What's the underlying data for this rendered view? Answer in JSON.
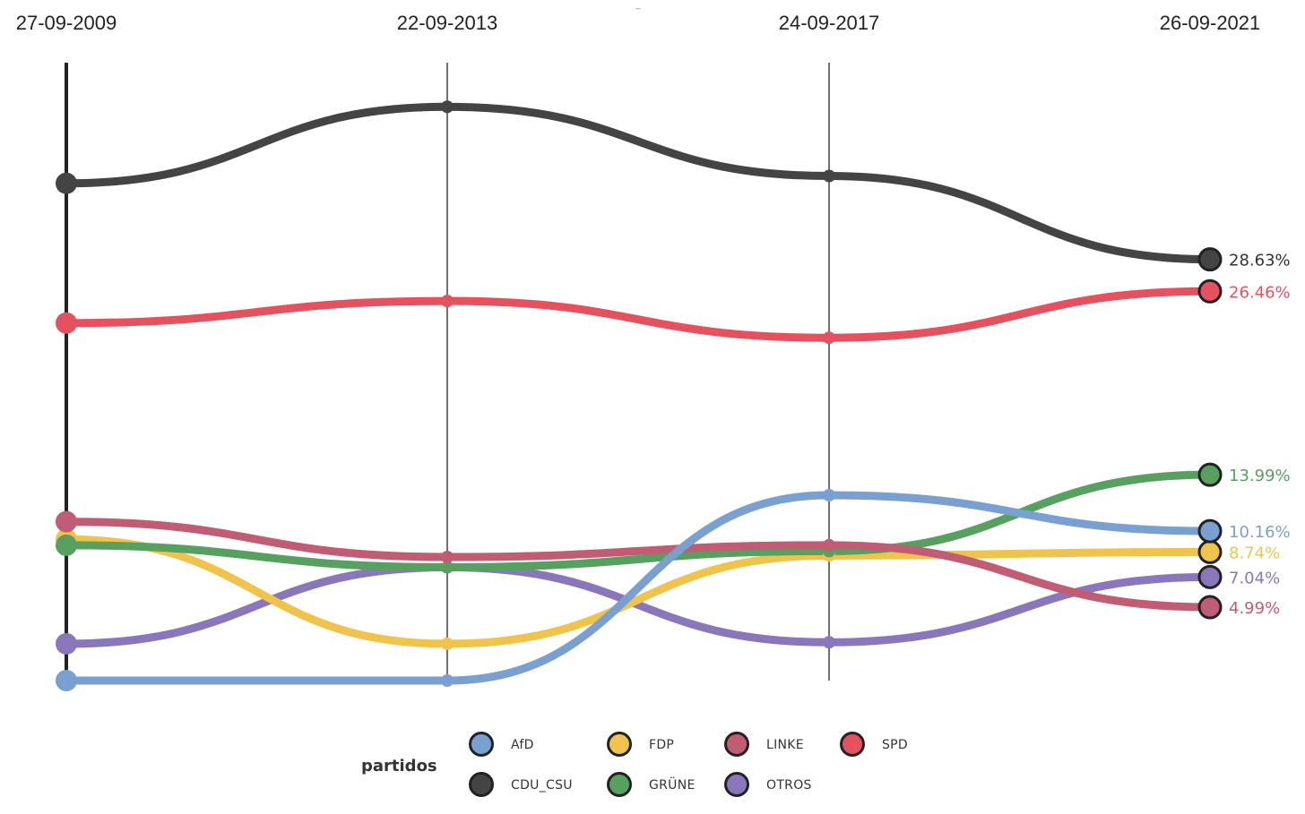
{
  "chart_data": {
    "type": "line",
    "title": "",
    "xlabel": "",
    "ylabel": "",
    "x": [
      "27-09-2009",
      "22-09-2013",
      "24-09-2017",
      "26-09-2021"
    ],
    "ylim": [
      0,
      42
    ],
    "grid": false,
    "legend_position": "bottom-center",
    "legend_title": "partidos",
    "series": [
      {
        "name": "AfD",
        "color": "#7a9fd1",
        "values": [
          0,
          0,
          12.6,
          10.16
        ],
        "end_label": "10.16%"
      },
      {
        "name": "FDP",
        "color": "#f0c44c",
        "values": [
          9.6,
          2.5,
          8.5,
          8.74
        ],
        "end_label": "8.74%"
      },
      {
        "name": "LINKE",
        "color": "#c05c73",
        "values": [
          10.8,
          8.4,
          9.2,
          4.99
        ],
        "end_label": "4.99%"
      },
      {
        "name": "SPD",
        "color": "#e5525f",
        "values": [
          24.3,
          25.8,
          23.3,
          26.46
        ],
        "end_label": "26.46%"
      },
      {
        "name": "CDU_CSU",
        "color": "#444444",
        "values": [
          33.8,
          39.0,
          34.3,
          28.63
        ],
        "end_label": "28.63%"
      },
      {
        "name": "GRÜNE",
        "color": "#57a060",
        "values": [
          9.2,
          7.7,
          8.8,
          13.99
        ],
        "end_label": "13.99%"
      },
      {
        "name": "OTROS",
        "color": "#8a77bb",
        "values": [
          2.5,
          7.7,
          2.6,
          7.04
        ],
        "end_label": "7.04%"
      }
    ]
  },
  "legend": {
    "title": "partidos",
    "rows": [
      [
        "AfD",
        "FDP",
        "LINKE",
        "SPD"
      ],
      [
        "CDU_CSU",
        "GRÜNE",
        "OTROS"
      ]
    ]
  },
  "top_mark": "_"
}
